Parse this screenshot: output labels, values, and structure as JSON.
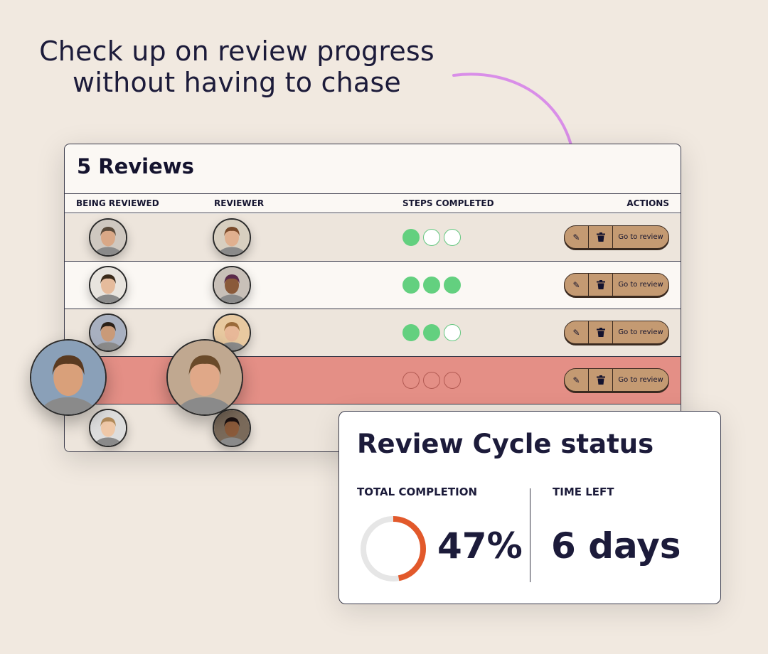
{
  "headline": {
    "line1": "Check up on review progress",
    "line2": "without having to chase"
  },
  "colors": {
    "accent_arrow": "#d98ee8",
    "step_done": "#63d07f",
    "alert_row": "#e48f86",
    "action_button": "#c49a72",
    "donut_fill": "#e2592b",
    "donut_track": "#e6e6e6"
  },
  "reviews": {
    "title": "5 Reviews",
    "columns": {
      "being_reviewed": "BEING REVIEWED",
      "reviewer": "REVIEWER",
      "steps": "STEPS COMPLETED",
      "actions": "ACTIONS"
    },
    "actions": {
      "edit_icon": "pencil-icon",
      "delete_icon": "trash-icon",
      "go_label": "Go to review"
    },
    "rows": [
      {
        "steps": [
          true,
          false,
          false
        ],
        "status": "normal"
      },
      {
        "steps": [
          true,
          true,
          true
        ],
        "status": "normal"
      },
      {
        "steps": [
          true,
          true,
          false
        ],
        "status": "normal"
      },
      {
        "steps": [
          false,
          false,
          false
        ],
        "status": "alert"
      },
      {
        "status": "normal"
      }
    ]
  },
  "cycle_status": {
    "title": "Review Cycle status",
    "completion_label": "TOTAL COMPLETION",
    "completion_value": "47%",
    "completion_fraction": 0.47,
    "time_left_label": "TIME LEFT",
    "time_left_value": "6 days"
  }
}
